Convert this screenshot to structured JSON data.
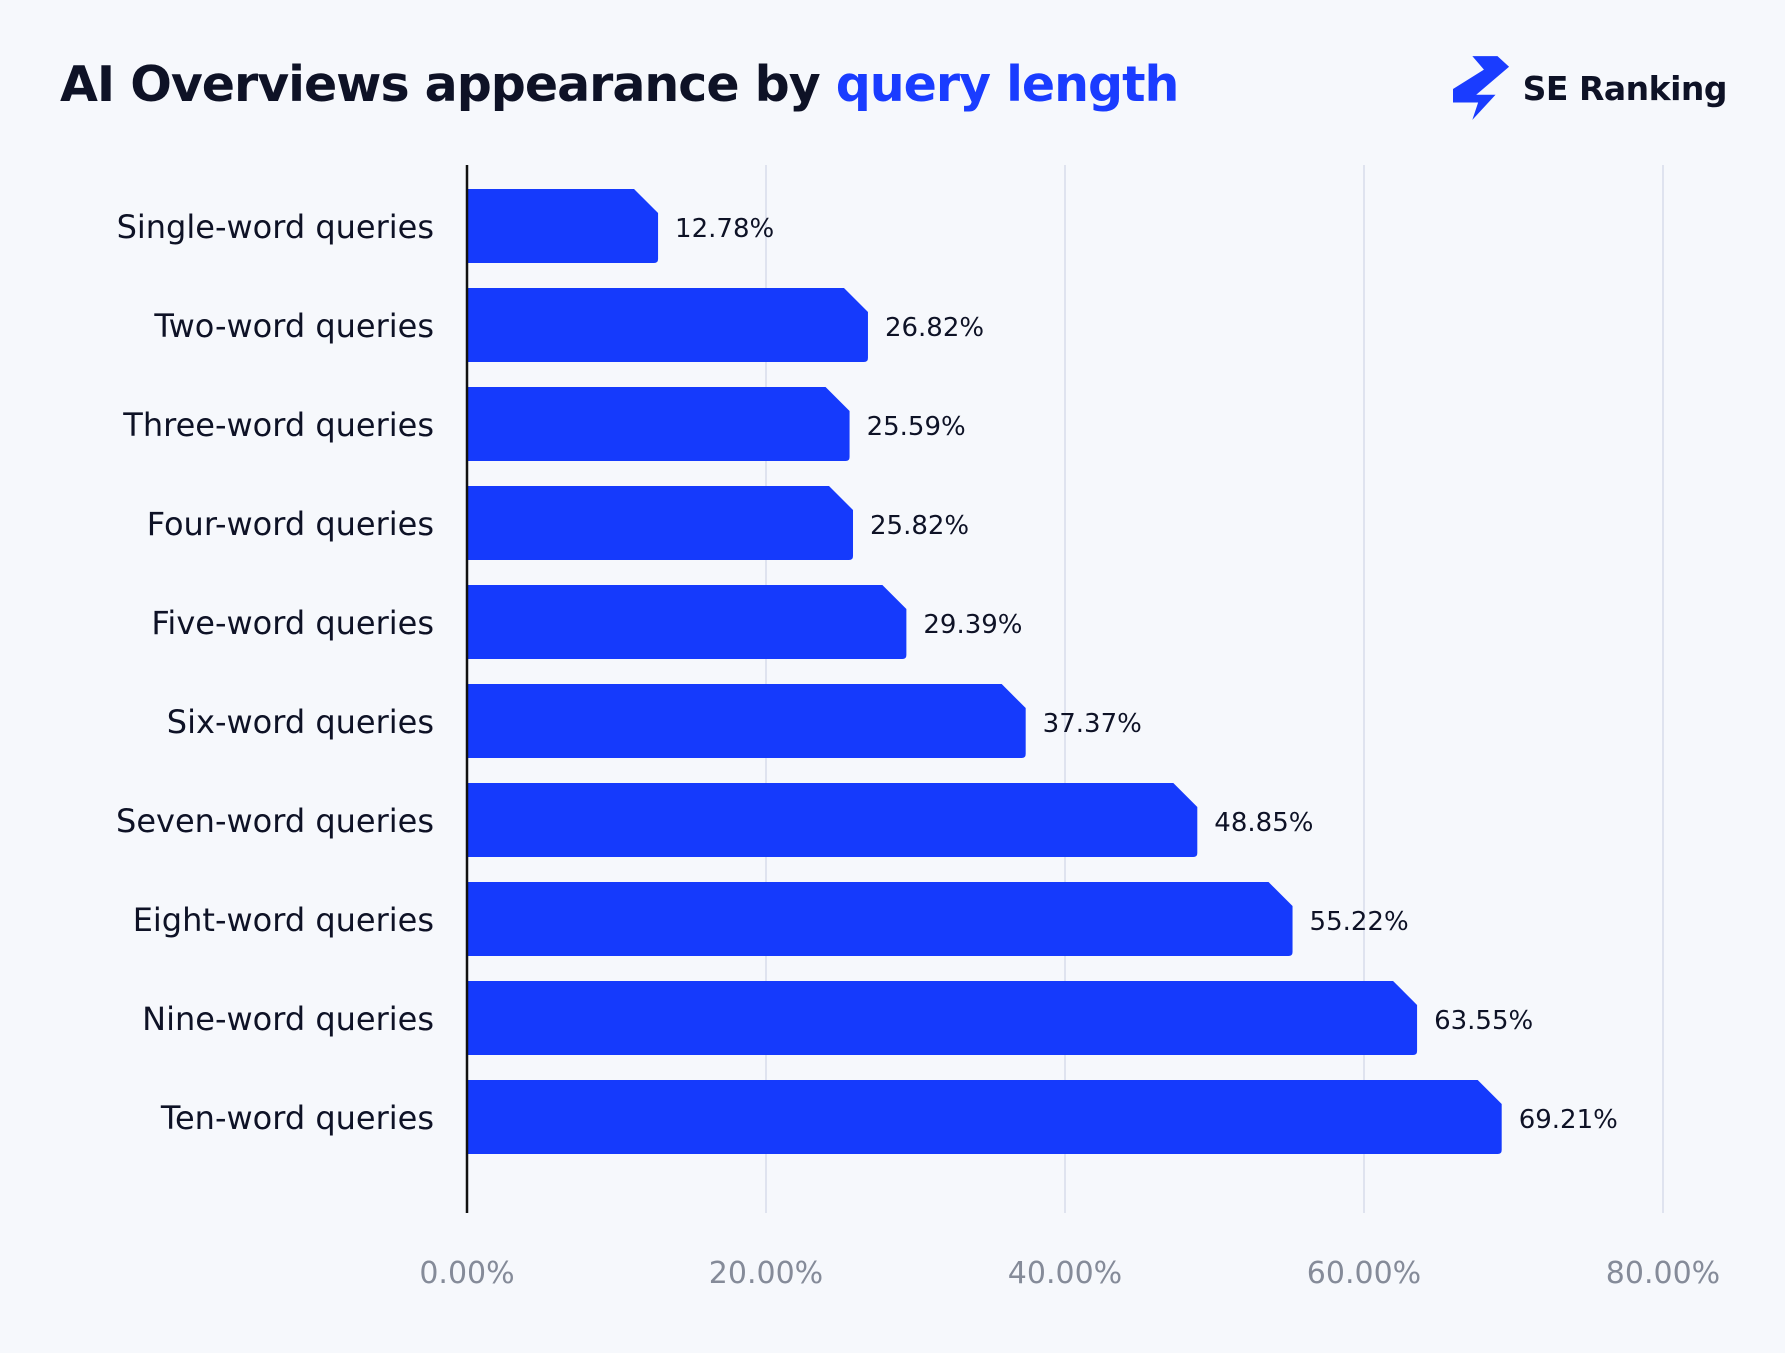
{
  "title": {
    "prefix": "AI Overviews appearance by ",
    "highlight": "query length"
  },
  "brand": {
    "name": "SE Ranking",
    "icon": "se-ranking-lightning-icon",
    "color": "#1a3cff"
  },
  "colors": {
    "bar": "#153afc",
    "title_accent": "#1a3cff",
    "gridline": "#dfe3ef",
    "axis": "#111111",
    "tick_text": "#858b99",
    "background": "#f6f8fc"
  },
  "chart_data": {
    "type": "bar",
    "orientation": "horizontal",
    "title": "AI Overviews appearance by query length",
    "categories": [
      "Single-word queries",
      "Two-word queries",
      "Three-word queries",
      "Four-word queries",
      "Five-word queries",
      "Six-word queries",
      "Seven-word queries",
      "Eight-word queries",
      "Nine-word queries",
      "Ten-word queries"
    ],
    "values": [
      12.78,
      26.82,
      25.59,
      25.82,
      29.39,
      37.37,
      48.85,
      55.22,
      63.55,
      69.21
    ],
    "value_labels": [
      "12.78%",
      "26.82%",
      "25.59%",
      "25.82%",
      "29.39%",
      "37.37%",
      "48.85%",
      "55.22%",
      "63.55%",
      "69.21%"
    ],
    "xticks": [
      0,
      20,
      40,
      60,
      80
    ],
    "xtick_labels": [
      "0.00%",
      "20.00%",
      "40.00%",
      "60.00%",
      "80.00%"
    ],
    "xlim": [
      0,
      80
    ],
    "xlabel": "",
    "ylabel": "",
    "grid": "vertical",
    "legend": "none"
  }
}
